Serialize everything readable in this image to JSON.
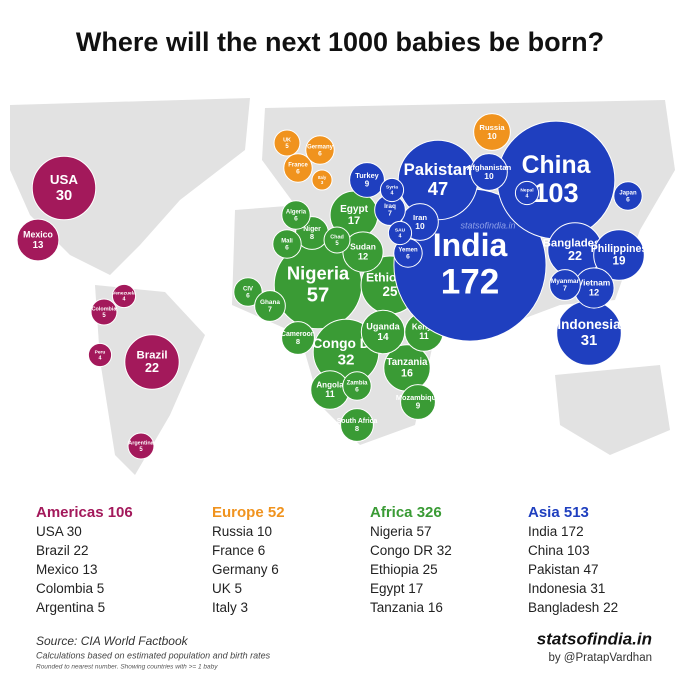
{
  "title": "Where will the next 1000 babies be born?",
  "watermark": "statsofindia.in",
  "regions": [
    {
      "name": "Americas",
      "total": 106,
      "color": "#a3195b",
      "top": [
        {
          "name": "USA",
          "value": 30
        },
        {
          "name": "Brazil",
          "value": 22
        },
        {
          "name": "Mexico",
          "value": 13
        },
        {
          "name": "Colombia",
          "value": 5
        },
        {
          "name": "Argentina",
          "value": 5
        }
      ],
      "bubbles": [
        {
          "label": "USA",
          "value": 30
        },
        {
          "label": "Mexico",
          "value": 13
        },
        {
          "label": "Brazil",
          "value": 22
        },
        {
          "label": "Colombia",
          "value": 5
        },
        {
          "label": "Peru",
          "value": 4
        },
        {
          "label": "Argentina",
          "value": 5
        },
        {
          "label": "Venezuela",
          "value": 4
        }
      ]
    },
    {
      "name": "Europe",
      "total": 52,
      "color": "#f0931e",
      "top": [
        {
          "name": "Russia",
          "value": 10
        },
        {
          "name": "France",
          "value": 6
        },
        {
          "name": "Germany",
          "value": 6
        },
        {
          "name": "UK",
          "value": 5
        },
        {
          "name": "Italy",
          "value": 3
        }
      ],
      "bubbles": [
        {
          "label": "UK",
          "value": 5
        },
        {
          "label": "France",
          "value": 6
        },
        {
          "label": "Germany",
          "value": 6
        },
        {
          "label": "Italy",
          "value": 3
        },
        {
          "label": "Russia",
          "value": 10
        }
      ]
    },
    {
      "name": "Africa",
      "total": 326,
      "color": "#3a9b35",
      "top": [
        {
          "name": "Nigeria",
          "value": 57
        },
        {
          "name": "Congo DR",
          "value": 32
        },
        {
          "name": "Ethiopia",
          "value": 25
        },
        {
          "name": "Egypt",
          "value": 17
        },
        {
          "name": "Tanzania",
          "value": 16
        }
      ],
      "bubbles": [
        {
          "label": "Nigeria",
          "value": 57
        },
        {
          "label": "Congo DR",
          "value": 32
        },
        {
          "label": "Ethiopia",
          "value": 25
        },
        {
          "label": "Egypt",
          "value": 17
        },
        {
          "label": "Tanzania",
          "value": 16
        },
        {
          "label": "Uganda",
          "value": 14
        },
        {
          "label": "Sudan",
          "value": 12
        },
        {
          "label": "Kenya",
          "value": 11
        },
        {
          "label": "Angola",
          "value": 11
        },
        {
          "label": "South Africa",
          "value": 8
        },
        {
          "label": "Niger",
          "value": 8
        },
        {
          "label": "Cameroon",
          "value": 8
        },
        {
          "label": "Algeria",
          "value": 6
        },
        {
          "label": "Mali",
          "value": 6
        },
        {
          "label": "Chad",
          "value": 5
        },
        {
          "label": "CIV",
          "value": 6
        },
        {
          "label": "Ghana",
          "value": 7
        },
        {
          "label": "Zambia",
          "value": 6
        },
        {
          "label": "Mozambique",
          "value": 9
        }
      ]
    },
    {
      "name": "Asia",
      "total": 513,
      "color": "#1f3fbf",
      "top": [
        {
          "name": "India",
          "value": 172
        },
        {
          "name": "China",
          "value": 103
        },
        {
          "name": "Pakistan",
          "value": 47
        },
        {
          "name": "Indonesia",
          "value": 31
        },
        {
          "name": "Bangladesh",
          "value": 22
        }
      ],
      "bubbles": [
        {
          "label": "India",
          "value": 172
        },
        {
          "label": "China",
          "value": 103
        },
        {
          "label": "Pakistan",
          "value": 47
        },
        {
          "label": "Indonesia",
          "value": 31
        },
        {
          "label": "Bangladesh",
          "value": 22
        },
        {
          "label": "Philippines",
          "value": 19
        },
        {
          "label": "Vietnam",
          "value": 12
        },
        {
          "label": "Iran",
          "value": 10
        },
        {
          "label": "Afghanistan",
          "value": 10
        },
        {
          "label": "Turkey",
          "value": 9
        },
        {
          "label": "Iraq",
          "value": 7
        },
        {
          "label": "Myanmar",
          "value": 7
        },
        {
          "label": "Yemen",
          "value": 6
        },
        {
          "label": "Japan",
          "value": 6
        },
        {
          "label": "Nepal",
          "value": 4
        },
        {
          "label": "SAU",
          "value": 4
        },
        {
          "label": "Syria",
          "value": 4
        }
      ]
    }
  ],
  "source": "Source: CIA World Factbook",
  "note": "Calculations based on estimated population and birth rates",
  "fine_print": "Rounded to nearest number. Showing countries with >= 1 baby",
  "brand": "statsofindia.in",
  "byline": "by @PratapVardhan"
}
